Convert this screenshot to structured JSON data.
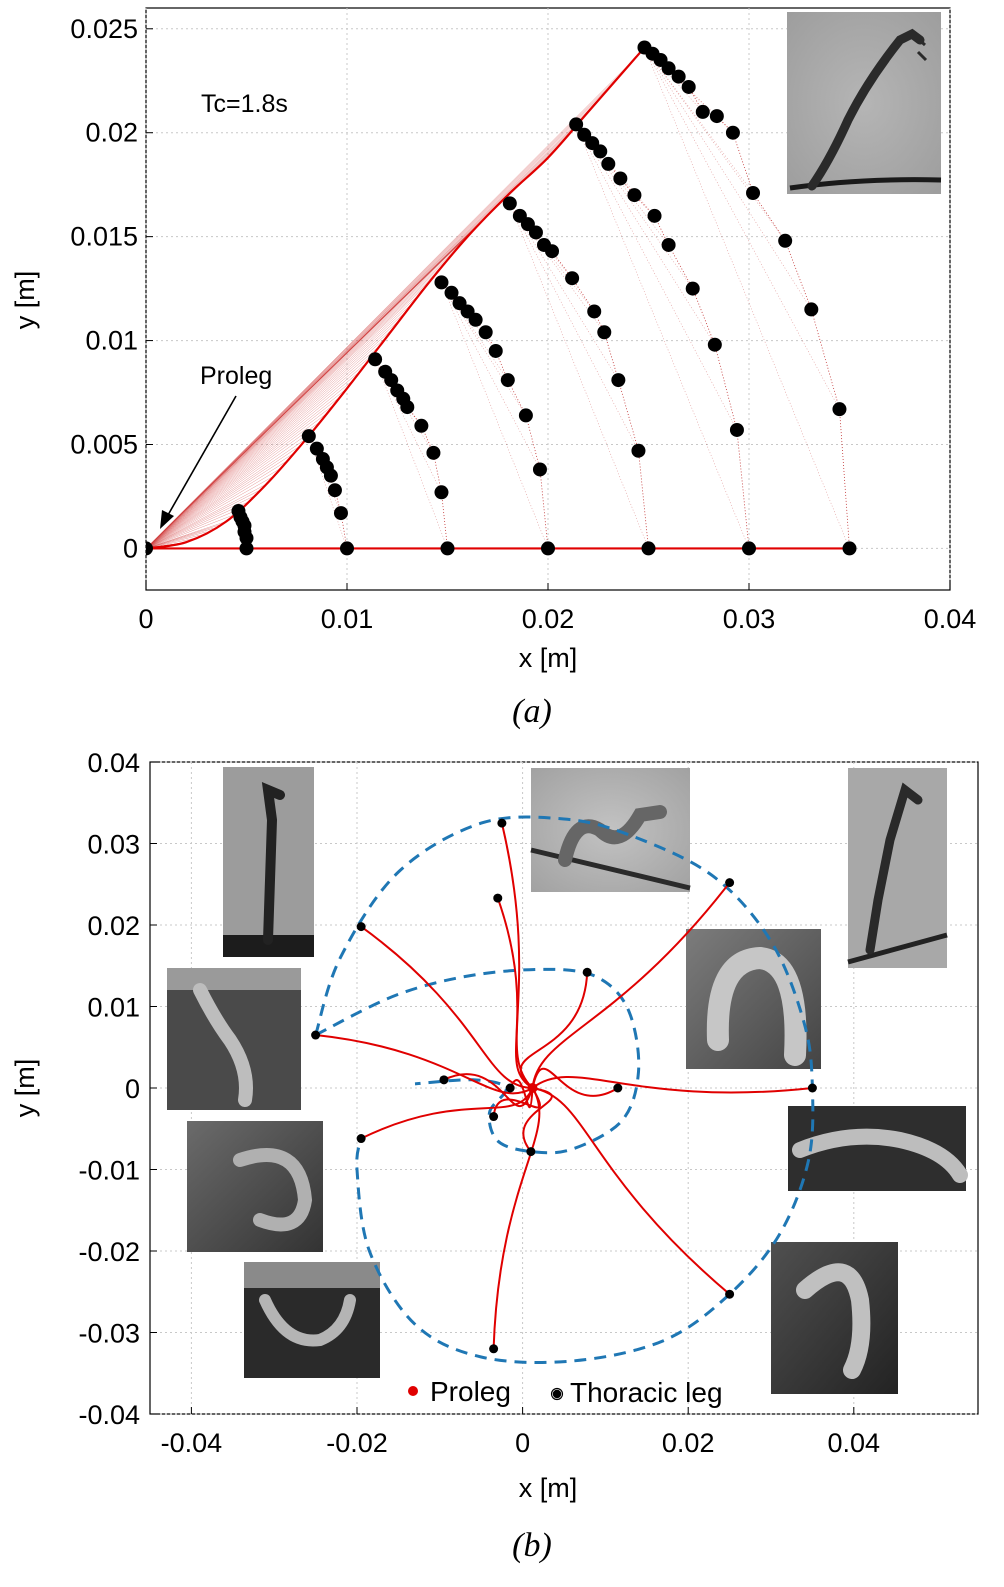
{
  "chart_data": [
    {
      "panel": "(a)",
      "type": "line",
      "xlabel": "x [m]",
      "ylabel": "y [m]",
      "xlim": [
        0,
        0.04
      ],
      "ylim": [
        -0.002,
        0.026
      ],
      "xticks": [
        "0",
        "0.01",
        "0.02",
        "0.03",
        "0.04"
      ],
      "yticks": [
        "0",
        "0.005",
        "0.01",
        "0.015",
        "0.02",
        "0.025"
      ],
      "xtick_values": [
        0,
        0.01,
        0.02,
        0.03,
        0.04
      ],
      "ytick_values": [
        0,
        0.005,
        0.01,
        0.015,
        0.02,
        0.025
      ],
      "grid": true,
      "annotations": [
        {
          "text": "Tc=1.8s"
        },
        {
          "text": "Proleg"
        }
      ],
      "inset_photo": "geometer-caterpillar-standing-on-twig",
      "colors": {
        "curve": "#e00000",
        "points": "#000000"
      },
      "proleg_curve": [
        [
          0,
          0
        ],
        [
          0.002,
          0.0003
        ],
        [
          0.004,
          0.0013
        ],
        [
          0.006,
          0.0031
        ],
        [
          0.008,
          0.0053
        ],
        [
          0.01,
          0.0077
        ],
        [
          0.012,
          0.0102
        ],
        [
          0.014,
          0.0127
        ],
        [
          0.016,
          0.015
        ],
        [
          0.018,
          0.017
        ],
        [
          0.02,
          0.0188
        ],
        [
          0.022,
          0.021
        ],
        [
          0.0248,
          0.0241
        ]
      ],
      "baseline": {
        "x": [
          0,
          0.035
        ],
        "y": [
          0,
          0
        ]
      },
      "series": [
        {
          "points": [
            [
              0.0046,
              0.0018
            ],
            [
              0.0047,
              0.0015
            ],
            [
              0.0048,
              0.0013
            ],
            [
              0.0049,
              0.0011
            ],
            [
              0.0049,
              0.0008
            ],
            [
              0.005,
              0.0005
            ],
            [
              0.005,
              0.0
            ]
          ]
        },
        {
          "points": [
            [
              0.0081,
              0.0054
            ],
            [
              0.0085,
              0.0048
            ],
            [
              0.0088,
              0.0043
            ],
            [
              0.009,
              0.0039
            ],
            [
              0.0092,
              0.0035
            ],
            [
              0.0094,
              0.0028
            ],
            [
              0.0097,
              0.0017
            ],
            [
              0.01,
              0.0
            ]
          ]
        },
        {
          "points": [
            [
              0.0114,
              0.0091
            ],
            [
              0.0119,
              0.0085
            ],
            [
              0.0122,
              0.0081
            ],
            [
              0.0125,
              0.0076
            ],
            [
              0.0128,
              0.0072
            ],
            [
              0.013,
              0.0068
            ],
            [
              0.0137,
              0.0059
            ],
            [
              0.0143,
              0.0046
            ],
            [
              0.0147,
              0.0027
            ],
            [
              0.015,
              0.0
            ]
          ]
        },
        {
          "points": [
            [
              0.0147,
              0.0128
            ],
            [
              0.0152,
              0.0123
            ],
            [
              0.0156,
              0.0118
            ],
            [
              0.016,
              0.0114
            ],
            [
              0.0164,
              0.011
            ],
            [
              0.0169,
              0.0104
            ],
            [
              0.0174,
              0.0095
            ],
            [
              0.018,
              0.0081
            ],
            [
              0.0189,
              0.0064
            ],
            [
              0.0196,
              0.0038
            ],
            [
              0.02,
              0.0
            ]
          ]
        },
        {
          "points": [
            [
              0.0181,
              0.0166
            ],
            [
              0.0186,
              0.016
            ],
            [
              0.019,
              0.0156
            ],
            [
              0.0194,
              0.0152
            ],
            [
              0.0198,
              0.0146
            ],
            [
              0.0202,
              0.0143
            ],
            [
              0.0212,
              0.013
            ],
            [
              0.0223,
              0.0114
            ],
            [
              0.0228,
              0.0104
            ],
            [
              0.0235,
              0.0081
            ],
            [
              0.0245,
              0.0047
            ],
            [
              0.025,
              0.0
            ]
          ]
        },
        {
          "points": [
            [
              0.0214,
              0.0204
            ],
            [
              0.0218,
              0.0199
            ],
            [
              0.0222,
              0.0195
            ],
            [
              0.0226,
              0.0191
            ],
            [
              0.023,
              0.0185
            ],
            [
              0.0236,
              0.0178
            ],
            [
              0.0243,
              0.017
            ],
            [
              0.0253,
              0.016
            ],
            [
              0.026,
              0.0146
            ],
            [
              0.0272,
              0.0125
            ],
            [
              0.0283,
              0.0098
            ],
            [
              0.0294,
              0.0057
            ],
            [
              0.03,
              0.0
            ]
          ]
        },
        {
          "points": [
            [
              0.0248,
              0.0241
            ],
            [
              0.0252,
              0.0238
            ],
            [
              0.0256,
              0.0235
            ],
            [
              0.026,
              0.0231
            ],
            [
              0.0265,
              0.0227
            ],
            [
              0.027,
              0.0222
            ],
            [
              0.0277,
              0.021
            ],
            [
              0.0284,
              0.0208
            ],
            [
              0.0292,
              0.02
            ],
            [
              0.0302,
              0.0171
            ],
            [
              0.0318,
              0.0148
            ],
            [
              0.0331,
              0.0115
            ],
            [
              0.0345,
              0.0067
            ],
            [
              0.035,
              0.0
            ]
          ]
        }
      ]
    },
    {
      "panel": "(b)",
      "type": "line",
      "xlabel": "x [m]",
      "ylabel": "y [m]",
      "xlim": [
        -0.045,
        0.055
      ],
      "ylim": [
        -0.04,
        0.04
      ],
      "xticks": [
        "-0.04",
        "-0.02",
        "0",
        "0.02",
        "0.04"
      ],
      "yticks": [
        "-0.04",
        "-0.03",
        "-0.02",
        "-0.01",
        "0",
        "0.01",
        "0.02",
        "0.03",
        "0.04"
      ],
      "xtick_values": [
        -0.04,
        -0.02,
        0,
        0.02,
        0.04
      ],
      "ytick_values": [
        -0.04,
        -0.03,
        -0.02,
        -0.01,
        0,
        0.01,
        0.02,
        0.03,
        0.04
      ],
      "grid": true,
      "legend": {
        "placement": "bottom-center",
        "entries": [
          {
            "label": "Proleg",
            "marker": "red-dot"
          },
          {
            "label": "Thoracic leg",
            "marker": "black-ring-dot"
          }
        ]
      },
      "colors": {
        "proleg": "#e00000",
        "thoracic": "#000000",
        "envelope": "#1f77b4"
      },
      "proleg_origin": [
        0.0012,
        0.0
      ],
      "thoracic_legs": [
        [
          -0.0025,
          0.0325
        ],
        [
          -0.003,
          0.0233
        ],
        [
          -0.0195,
          0.0198
        ],
        [
          0.0078,
          0.0142
        ],
        [
          -0.025,
          0.0065
        ],
        [
          0.025,
          0.0252
        ],
        [
          0.035,
          0.0
        ],
        [
          0.0115,
          0.0
        ],
        [
          -0.0095,
          0.001
        ],
        [
          -0.0015,
          0.0
        ],
        [
          -0.0035,
          -0.0035
        ],
        [
          0.001,
          -0.0078
        ],
        [
          -0.0195,
          -0.0062
        ],
        [
          0.025,
          -0.0253
        ],
        [
          -0.0035,
          -0.032
        ]
      ],
      "envelope_outer": [
        [
          -0.025,
          0.0065
        ],
        [
          -0.022,
          0.016
        ],
        [
          -0.015,
          0.0265
        ],
        [
          -0.005,
          0.0325
        ],
        [
          0.005,
          0.033
        ],
        [
          0.013,
          0.031
        ],
        [
          0.023,
          0.026
        ],
        [
          0.03,
          0.018
        ],
        [
          0.034,
          0.008
        ],
        [
          0.035,
          0.0
        ],
        [
          0.0345,
          -0.009
        ],
        [
          0.031,
          -0.018
        ],
        [
          0.025,
          -0.0253
        ],
        [
          0.017,
          -0.031
        ],
        [
          0.006,
          -0.0335
        ],
        [
          -0.005,
          -0.033
        ],
        [
          -0.013,
          -0.029
        ],
        [
          -0.0185,
          -0.02
        ],
        [
          -0.02,
          -0.01
        ],
        [
          -0.0195,
          -0.0062
        ]
      ],
      "envelope_inner": [
        [
          -0.025,
          0.0065
        ],
        [
          -0.015,
          0.0115
        ],
        [
          -0.005,
          0.014
        ],
        [
          0.005,
          0.0145
        ],
        [
          0.01,
          0.013
        ],
        [
          0.013,
          0.009
        ],
        [
          0.014,
          0.002
        ],
        [
          0.012,
          -0.004
        ],
        [
          0.006,
          -0.0075
        ],
        [
          0.001,
          -0.0078
        ],
        [
          -0.003,
          -0.0065
        ],
        [
          -0.004,
          -0.003
        ],
        [
          -0.002,
          0.0
        ],
        [
          -0.006,
          0.001
        ],
        [
          -0.013,
          0.0005
        ]
      ],
      "inset_photos": [
        "caterpillar-upright-left",
        "caterpillar-arched-top",
        "caterpillar-upright-right",
        "caterpillar-leaning-left",
        "caterpillar-loop-right",
        "caterpillar-curled-left",
        "caterpillar-horizontal-right",
        "caterpillar-hanging-left",
        "caterpillar-arc-lower-right"
      ]
    }
  ]
}
